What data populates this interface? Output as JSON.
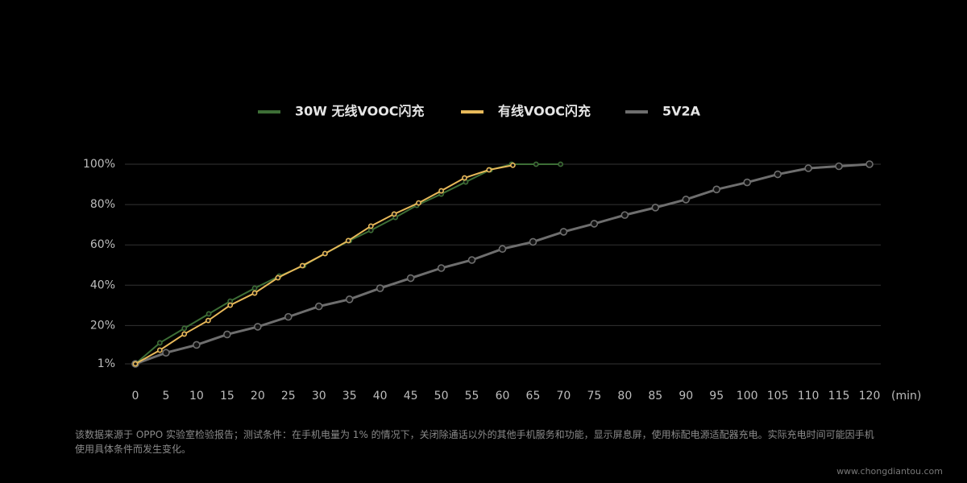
{
  "chart_data": {
    "type": "line",
    "x_label": "(min)",
    "xlim": [
      0,
      120
    ],
    "xticks": [
      0,
      5,
      10,
      15,
      20,
      25,
      30,
      35,
      40,
      45,
      50,
      55,
      60,
      65,
      70,
      75,
      80,
      85,
      90,
      95,
      100,
      105,
      110,
      115,
      120
    ],
    "ylim": [
      1,
      100
    ],
    "yticks": [
      {
        "value": 1,
        "label": "1%"
      },
      {
        "value": 20,
        "label": "20%"
      },
      {
        "value": 40,
        "label": "40%"
      },
      {
        "value": 60,
        "label": "60%"
      },
      {
        "value": 80,
        "label": "80%"
      },
      {
        "value": 100,
        "label": "100%"
      }
    ],
    "grid": true,
    "legend": "top",
    "series": [
      {
        "name": "30W 无线VOOC闪充",
        "color": "#3d6e36",
        "x": [
          0,
          4,
          8,
          12,
          15.5,
          19.5,
          23.5,
          27.5,
          31,
          35,
          38.5,
          42.5,
          46,
          50,
          54,
          58,
          61.5,
          65.5,
          69.5
        ],
        "values": [
          1,
          11.4,
          18.6,
          25.8,
          32.1,
          38.5,
          44.5,
          49.7,
          55.7,
          62.1,
          67.2,
          73.6,
          79.6,
          85.2,
          91.2,
          97.2,
          100,
          100,
          100
        ]
      },
      {
        "name": "有线VOOC闪充",
        "color": "#e8b95a",
        "x": [
          0,
          4,
          8,
          11.9,
          15.5,
          19.5,
          23.3,
          27.3,
          31,
          34.8,
          38.5,
          42.3,
          46.3,
          50,
          53.8,
          57.8,
          61.7
        ],
        "values": [
          1,
          7.8,
          15.8,
          22.5,
          30.1,
          36.1,
          43.7,
          49.7,
          55.7,
          62.1,
          69.3,
          75.3,
          80.8,
          86.8,
          93.2,
          97.2,
          99.5
        ]
      },
      {
        "name": "5V2A",
        "color": "#6e6e6e",
        "x": [
          0,
          5,
          10,
          15,
          20,
          25,
          30,
          35,
          40,
          45,
          50,
          55,
          60,
          65,
          70,
          75,
          80,
          85,
          90,
          95,
          100,
          105,
          110,
          115,
          120
        ],
        "values": [
          1,
          6.5,
          10.4,
          15.6,
          19.4,
          24.3,
          29.5,
          33,
          38.5,
          43.5,
          48.5,
          52.5,
          58,
          61.5,
          66.5,
          70.5,
          74.8,
          78.5,
          82.5,
          87.5,
          91,
          95,
          98,
          99,
          100
        ]
      }
    ],
    "footnote": "该数据来源于 OPPO 实验室检验报告；测试条件：在手机电量为 1% 的情况下，关闭除通话以外的其他手机服务和功能，显示屏息屏，使用标配电源适配器充电。实际充电时间可能因手机使用具体条件而发生变化。",
    "watermark": "www.chongdiantou.com"
  }
}
